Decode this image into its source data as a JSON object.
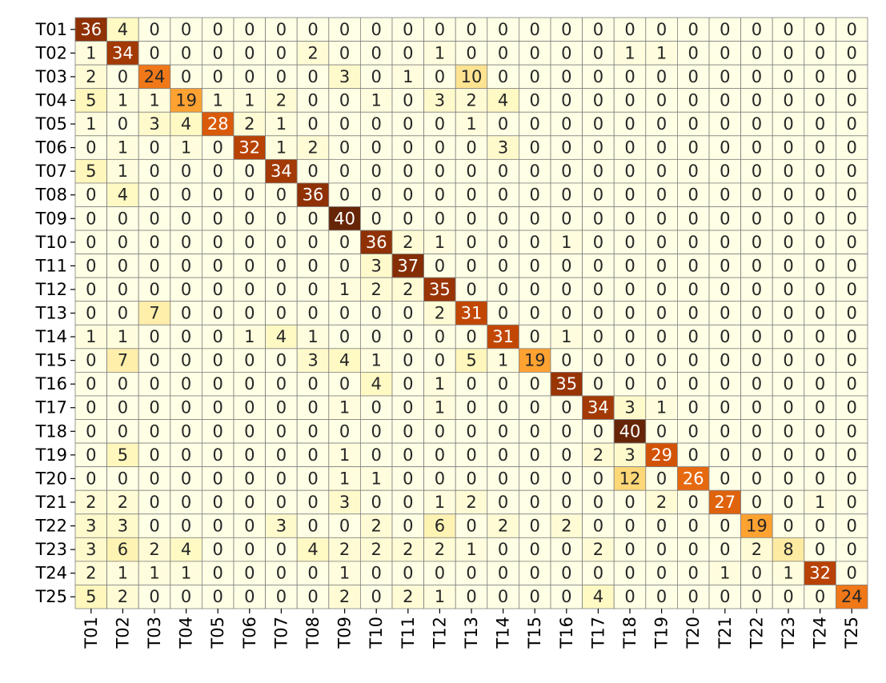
{
  "chart_data": {
    "type": "heatmap",
    "title": "",
    "xlabel": "",
    "ylabel": "",
    "row_labels": [
      "T01",
      "T02",
      "T03",
      "T04",
      "T05",
      "T06",
      "T07",
      "T08",
      "T09",
      "T10",
      "T11",
      "T12",
      "T13",
      "T14",
      "T15",
      "T16",
      "T17",
      "T18",
      "T19",
      "T20",
      "T21",
      "T22",
      "T23",
      "T24",
      "T25"
    ],
    "col_labels": [
      "T01",
      "T02",
      "T03",
      "T04",
      "T05",
      "T06",
      "T07",
      "T08",
      "T09",
      "T10",
      "T11",
      "T12",
      "T13",
      "T14",
      "T15",
      "T16",
      "T17",
      "T18",
      "T19",
      "T20",
      "T21",
      "T22",
      "T23",
      "T24",
      "T25"
    ],
    "values": [
      [
        36,
        4,
        0,
        0,
        0,
        0,
        0,
        0,
        0,
        0,
        0,
        0,
        0,
        0,
        0,
        0,
        0,
        0,
        0,
        0,
        0,
        0,
        0,
        0,
        0
      ],
      [
        1,
        34,
        0,
        0,
        0,
        0,
        0,
        2,
        0,
        0,
        0,
        1,
        0,
        0,
        0,
        0,
        0,
        1,
        1,
        0,
        0,
        0,
        0,
        0,
        0
      ],
      [
        2,
        0,
        24,
        0,
        0,
        0,
        0,
        0,
        3,
        0,
        1,
        0,
        10,
        0,
        0,
        0,
        0,
        0,
        0,
        0,
        0,
        0,
        0,
        0,
        0
      ],
      [
        5,
        1,
        1,
        19,
        1,
        1,
        2,
        0,
        0,
        1,
        0,
        3,
        2,
        4,
        0,
        0,
        0,
        0,
        0,
        0,
        0,
        0,
        0,
        0,
        0
      ],
      [
        1,
        0,
        3,
        4,
        28,
        2,
        1,
        0,
        0,
        0,
        0,
        0,
        1,
        0,
        0,
        0,
        0,
        0,
        0,
        0,
        0,
        0,
        0,
        0,
        0
      ],
      [
        0,
        1,
        0,
        1,
        0,
        32,
        1,
        2,
        0,
        0,
        0,
        0,
        0,
        3,
        0,
        0,
        0,
        0,
        0,
        0,
        0,
        0,
        0,
        0,
        0
      ],
      [
        5,
        1,
        0,
        0,
        0,
        0,
        34,
        0,
        0,
        0,
        0,
        0,
        0,
        0,
        0,
        0,
        0,
        0,
        0,
        0,
        0,
        0,
        0,
        0,
        0
      ],
      [
        0,
        4,
        0,
        0,
        0,
        0,
        0,
        36,
        0,
        0,
        0,
        0,
        0,
        0,
        0,
        0,
        0,
        0,
        0,
        0,
        0,
        0,
        0,
        0,
        0
      ],
      [
        0,
        0,
        0,
        0,
        0,
        0,
        0,
        0,
        40,
        0,
        0,
        0,
        0,
        0,
        0,
        0,
        0,
        0,
        0,
        0,
        0,
        0,
        0,
        0,
        0
      ],
      [
        0,
        0,
        0,
        0,
        0,
        0,
        0,
        0,
        0,
        36,
        2,
        1,
        0,
        0,
        0,
        1,
        0,
        0,
        0,
        0,
        0,
        0,
        0,
        0,
        0
      ],
      [
        0,
        0,
        0,
        0,
        0,
        0,
        0,
        0,
        0,
        3,
        37,
        0,
        0,
        0,
        0,
        0,
        0,
        0,
        0,
        0,
        0,
        0,
        0,
        0,
        0
      ],
      [
        0,
        0,
        0,
        0,
        0,
        0,
        0,
        0,
        1,
        2,
        2,
        35,
        0,
        0,
        0,
        0,
        0,
        0,
        0,
        0,
        0,
        0,
        0,
        0,
        0
      ],
      [
        0,
        0,
        7,
        0,
        0,
        0,
        0,
        0,
        0,
        0,
        0,
        2,
        31,
        0,
        0,
        0,
        0,
        0,
        0,
        0,
        0,
        0,
        0,
        0,
        0
      ],
      [
        1,
        1,
        0,
        0,
        0,
        1,
        4,
        1,
        0,
        0,
        0,
        0,
        0,
        31,
        0,
        1,
        0,
        0,
        0,
        0,
        0,
        0,
        0,
        0,
        0
      ],
      [
        0,
        7,
        0,
        0,
        0,
        0,
        0,
        3,
        4,
        1,
        0,
        0,
        5,
        1,
        19,
        0,
        0,
        0,
        0,
        0,
        0,
        0,
        0,
        0,
        0
      ],
      [
        0,
        0,
        0,
        0,
        0,
        0,
        0,
        0,
        0,
        4,
        0,
        1,
        0,
        0,
        0,
        35,
        0,
        0,
        0,
        0,
        0,
        0,
        0,
        0,
        0
      ],
      [
        0,
        0,
        0,
        0,
        0,
        0,
        0,
        0,
        1,
        0,
        0,
        1,
        0,
        0,
        0,
        0,
        34,
        3,
        1,
        0,
        0,
        0,
        0,
        0,
        0
      ],
      [
        0,
        0,
        0,
        0,
        0,
        0,
        0,
        0,
        0,
        0,
        0,
        0,
        0,
        0,
        0,
        0,
        0,
        40,
        0,
        0,
        0,
        0,
        0,
        0,
        0
      ],
      [
        0,
        5,
        0,
        0,
        0,
        0,
        0,
        0,
        1,
        0,
        0,
        0,
        0,
        0,
        0,
        0,
        2,
        3,
        29,
        0,
        0,
        0,
        0,
        0,
        0
      ],
      [
        0,
        0,
        0,
        0,
        0,
        0,
        0,
        0,
        1,
        1,
        0,
        0,
        0,
        0,
        0,
        0,
        0,
        12,
        0,
        26,
        0,
        0,
        0,
        0,
        0
      ],
      [
        2,
        2,
        0,
        0,
        0,
        0,
        0,
        0,
        3,
        0,
        0,
        1,
        2,
        0,
        0,
        0,
        0,
        0,
        2,
        0,
        27,
        0,
        0,
        1,
        0
      ],
      [
        3,
        3,
        0,
        0,
        0,
        0,
        3,
        0,
        0,
        2,
        0,
        6,
        0,
        2,
        0,
        2,
        0,
        0,
        0,
        0,
        0,
        19,
        0,
        0,
        0
      ],
      [
        3,
        6,
        2,
        4,
        0,
        0,
        0,
        4,
        2,
        2,
        2,
        2,
        1,
        0,
        0,
        0,
        2,
        0,
        0,
        0,
        0,
        2,
        8,
        0,
        0
      ],
      [
        2,
        1,
        1,
        1,
        0,
        0,
        0,
        0,
        1,
        0,
        0,
        0,
        0,
        0,
        0,
        0,
        0,
        0,
        0,
        0,
        1,
        0,
        1,
        32,
        0
      ],
      [
        5,
        2,
        0,
        0,
        0,
        0,
        0,
        0,
        2,
        0,
        2,
        1,
        0,
        0,
        0,
        0,
        4,
        0,
        0,
        0,
        0,
        0,
        0,
        0,
        24
      ]
    ],
    "vmin": 0,
    "vmax": 40,
    "colormap": "YlOrBr",
    "cell_border_color": "#808080",
    "legend": "none",
    "grid": true
  }
}
